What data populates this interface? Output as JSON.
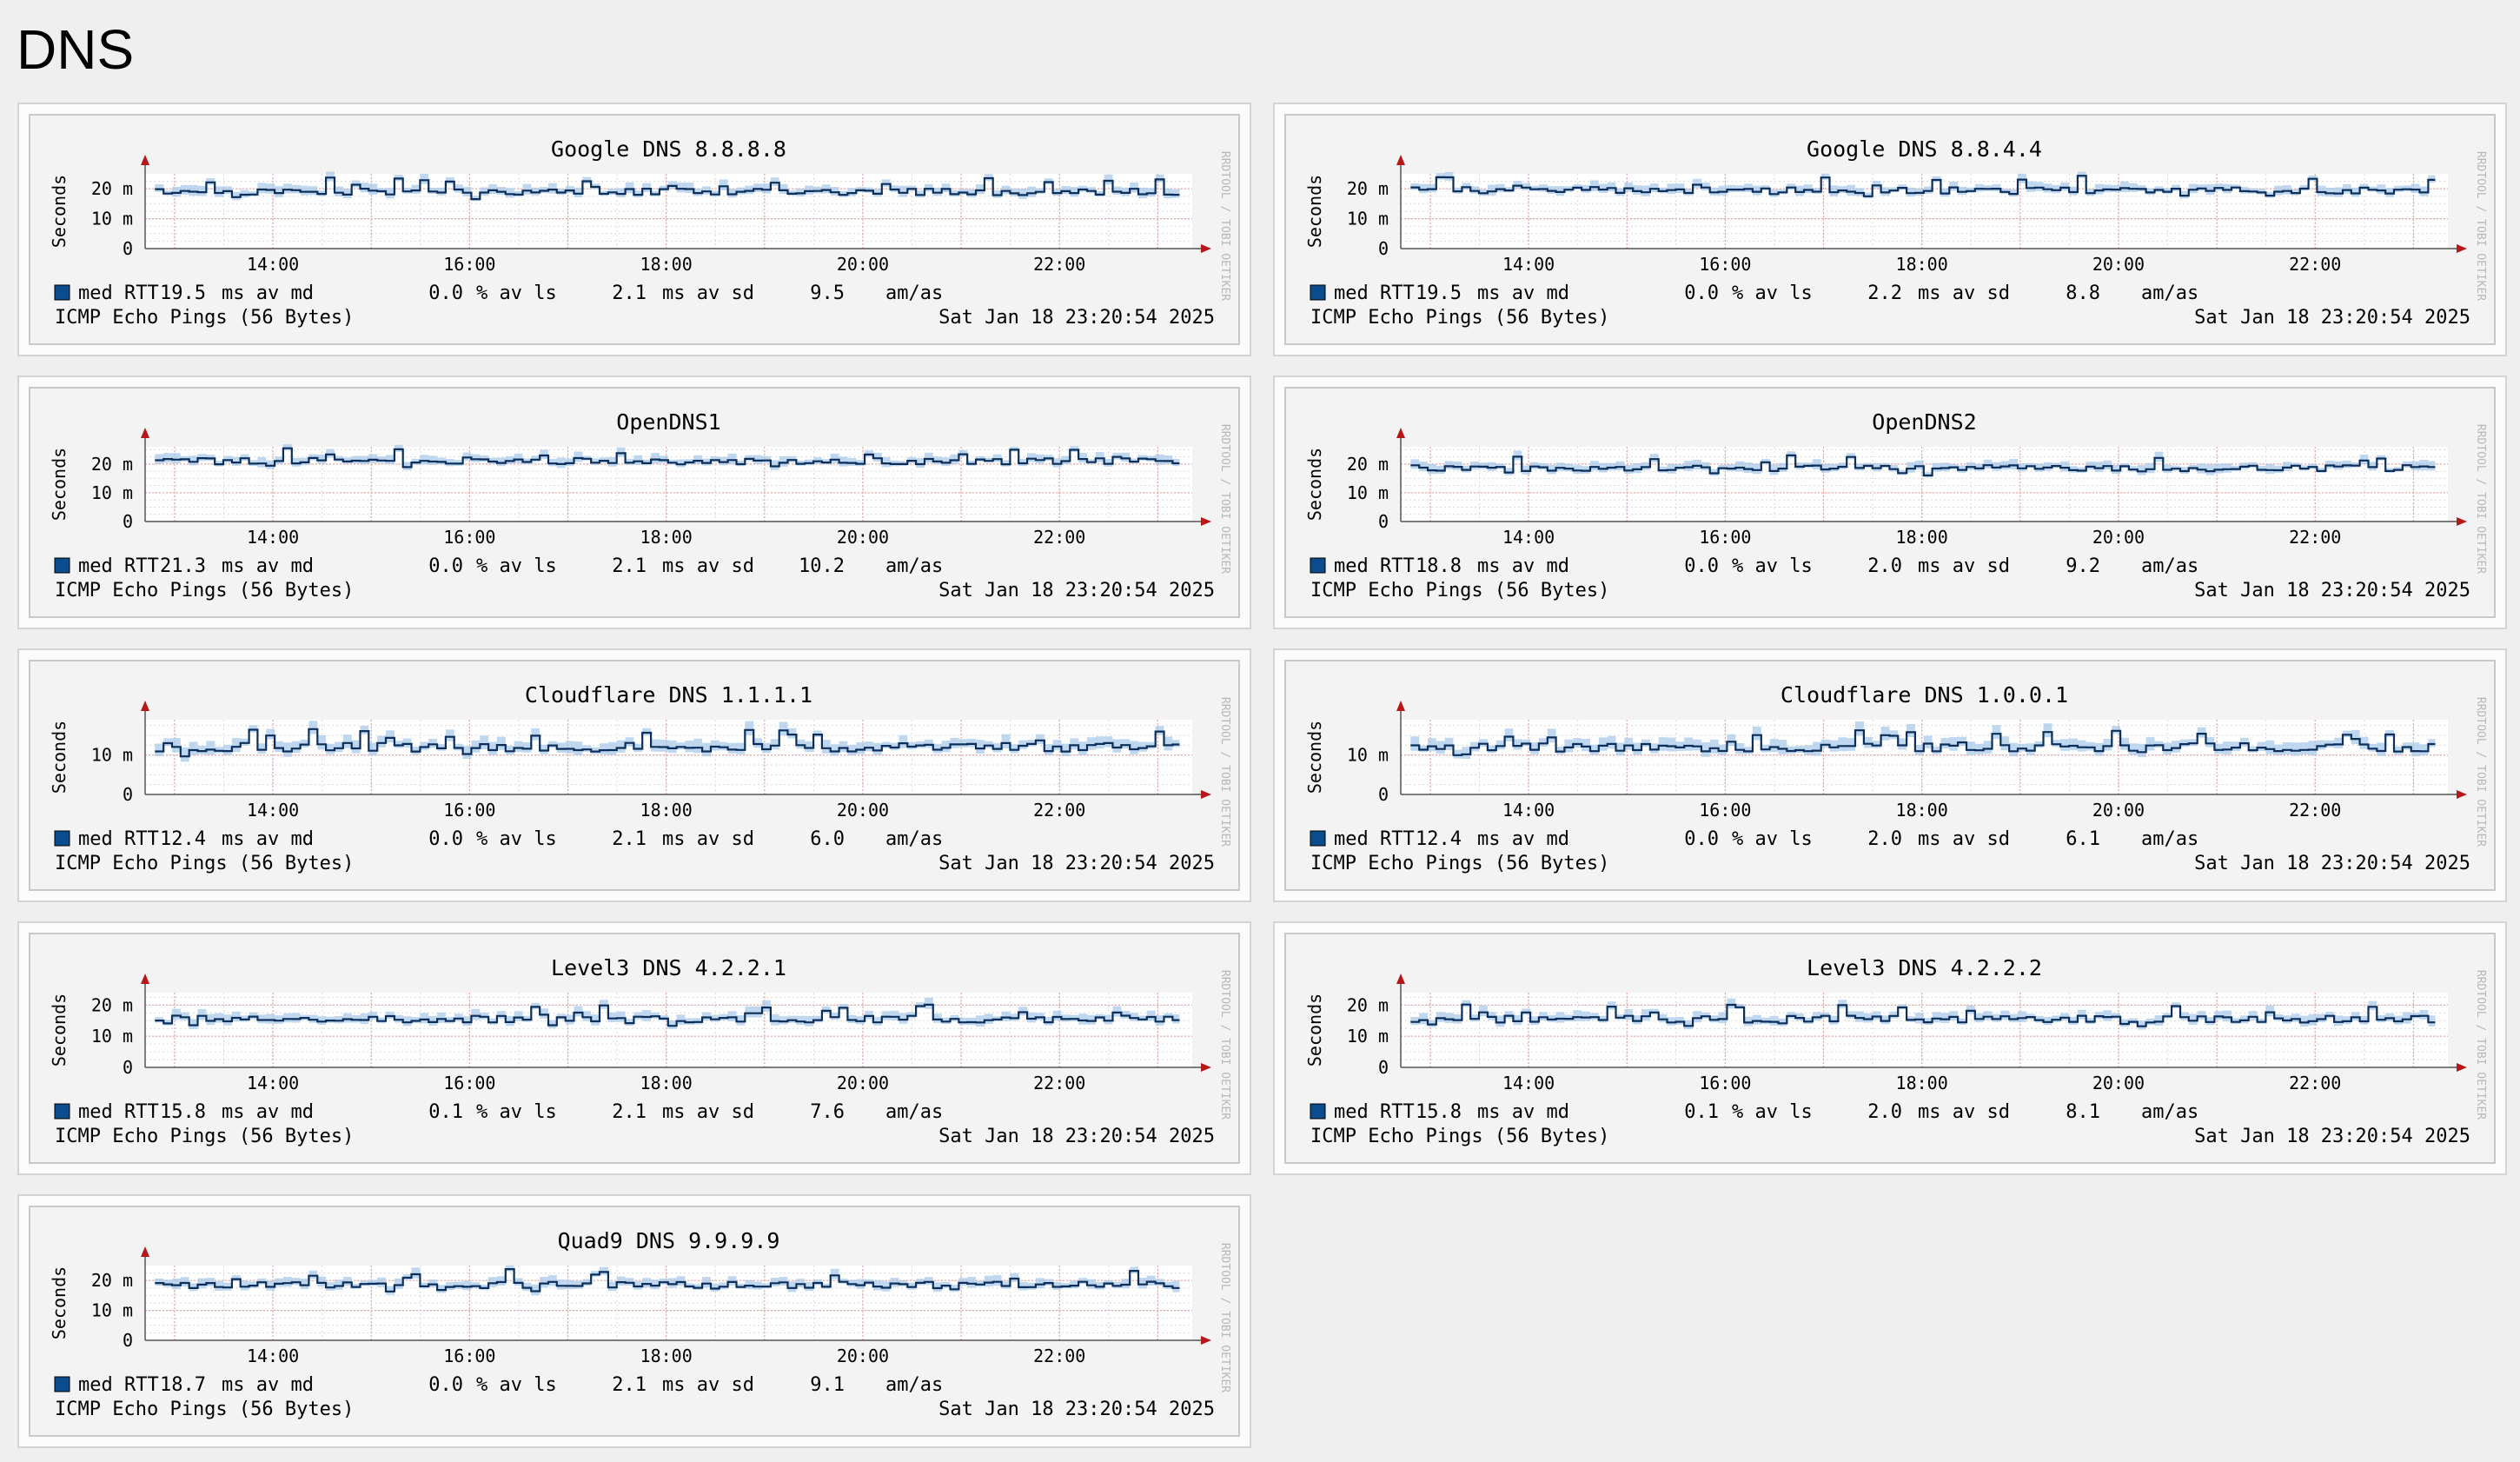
{
  "page": {
    "title": "DNS"
  },
  "colors": {
    "line": "#0b2f5a",
    "band": "#a9c9ea",
    "grid_minor": "#d9d9d9",
    "grid_major": "#e8a6a6",
    "axis_arrow": "#b81717",
    "panel_bg": "#f3f3f3",
    "legend_swatch": "#0b4c8c"
  },
  "common": {
    "ylabel": "Seconds",
    "x_ticks": [
      "14:00",
      "16:00",
      "18:00",
      "20:00",
      "22:00"
    ],
    "footer_left": "ICMP Echo Pings (56 Bytes)",
    "footer_right": "Sat Jan 18 23:20:54 2025",
    "watermark": "RRDTOOL / TOBI OETIKER",
    "legend": {
      "series": "med RTT",
      "avmd_unit": "ms av md",
      "avls_unit": "% av ls",
      "avsd_unit": "ms av sd",
      "amas_unit": "am/as"
    }
  },
  "chart_data": [
    {
      "type": "line",
      "title": "Google DNS 8.8.8.8",
      "ylim": [
        0,
        25
      ],
      "yticks": [
        {
          "v": 0,
          "label": "0"
        },
        {
          "v": 10,
          "label": "10 m"
        },
        {
          "v": 20,
          "label": "20 m"
        }
      ],
      "baseline": 19,
      "seed": 11,
      "stats": {
        "avmd": "19.5",
        "avls": "0.0",
        "avsd": "2.1",
        "amas": "9.5"
      }
    },
    {
      "type": "line",
      "title": "Google DNS 8.8.4.4",
      "ylim": [
        0,
        25
      ],
      "yticks": [
        {
          "v": 0,
          "label": "0"
        },
        {
          "v": 10,
          "label": "10 m"
        },
        {
          "v": 20,
          "label": "20 m"
        }
      ],
      "baseline": 19.5,
      "seed": 23,
      "stats": {
        "avmd": "19.5",
        "avls": "0.0",
        "avsd": "2.2",
        "amas": "8.8"
      }
    },
    {
      "type": "line",
      "title": "OpenDNS1",
      "ylim": [
        0,
        26
      ],
      "yticks": [
        {
          "v": 0,
          "label": "0"
        },
        {
          "v": 10,
          "label": "10 m"
        },
        {
          "v": 20,
          "label": "20 m"
        }
      ],
      "baseline": 21,
      "seed": 37,
      "stats": {
        "avmd": "21.3",
        "avls": "0.0",
        "avsd": "2.1",
        "amas": "10.2"
      }
    },
    {
      "type": "line",
      "title": "OpenDNS2",
      "ylim": [
        0,
        26
      ],
      "yticks": [
        {
          "v": 0,
          "label": "0"
        },
        {
          "v": 10,
          "label": "10 m"
        },
        {
          "v": 20,
          "label": "20 m"
        }
      ],
      "baseline": 18.5,
      "seed": 41,
      "stats": {
        "avmd": "18.8",
        "avls": "0.0",
        "avsd": "2.0",
        "amas": "9.2"
      }
    },
    {
      "type": "line",
      "title": "Cloudflare DNS 1.1.1.1",
      "ylim": [
        0,
        19
      ],
      "yticks": [
        {
          "v": 0,
          "label": "0"
        },
        {
          "v": 10,
          "label": "10 m"
        }
      ],
      "baseline": 12,
      "seed": 53,
      "stats": {
        "avmd": "12.4",
        "avls": "0.0",
        "avsd": "2.1",
        "amas": "6.0"
      }
    },
    {
      "type": "line",
      "title": "Cloudflare DNS 1.0.0.1",
      "ylim": [
        0,
        19
      ],
      "yticks": [
        {
          "v": 0,
          "label": "0"
        },
        {
          "v": 10,
          "label": "10 m"
        }
      ],
      "baseline": 12,
      "seed": 67,
      "stats": {
        "avmd": "12.4",
        "avls": "0.0",
        "avsd": "2.0",
        "amas": "6.1"
      }
    },
    {
      "type": "line",
      "title": "Level3 DNS 4.2.2.1",
      "ylim": [
        0,
        24
      ],
      "yticks": [
        {
          "v": 0,
          "label": "0"
        },
        {
          "v": 10,
          "label": "10 m"
        },
        {
          "v": 20,
          "label": "20 m"
        }
      ],
      "baseline": 15.5,
      "seed": 71,
      "stats": {
        "avmd": "15.8",
        "avls": "0.1",
        "avsd": "2.1",
        "amas": "7.6"
      }
    },
    {
      "type": "line",
      "title": "Level3 DNS 4.2.2.2",
      "ylim": [
        0,
        24
      ],
      "yticks": [
        {
          "v": 0,
          "label": "0"
        },
        {
          "v": 10,
          "label": "10 m"
        },
        {
          "v": 20,
          "label": "20 m"
        }
      ],
      "baseline": 15.5,
      "seed": 83,
      "stats": {
        "avmd": "15.8",
        "avls": "0.1",
        "avsd": "2.0",
        "amas": "8.1"
      }
    },
    {
      "type": "line",
      "title": "Quad9 DNS 9.9.9.9",
      "ylim": [
        0,
        25
      ],
      "yticks": [
        {
          "v": 0,
          "label": "0"
        },
        {
          "v": 10,
          "label": "10 m"
        },
        {
          "v": 20,
          "label": "20 m"
        }
      ],
      "baseline": 18.5,
      "seed": 97,
      "stats": {
        "avmd": "18.7",
        "avls": "0.0",
        "avsd": "2.1",
        "amas": "9.1"
      }
    }
  ]
}
